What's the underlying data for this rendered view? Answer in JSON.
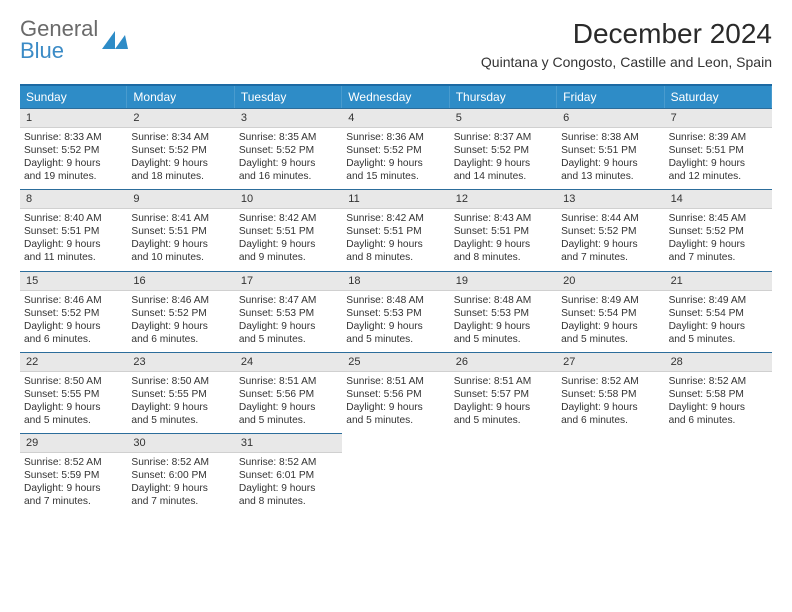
{
  "logo": {
    "textTop": "General",
    "textBottom": "Blue",
    "triColor": "#2e8cc7",
    "grayColor": "#6a6a6a",
    "blueColor": "#3b8bc6"
  },
  "header": {
    "title": "December 2024",
    "subtitle": "Quintana y Congosto, Castille and Leon, Spain"
  },
  "colors": {
    "headerBar": "#2e8cc7",
    "topRule": "#1c6aa3",
    "dayBarBg": "#e8e8e8",
    "dayBarTopBorder": "#2c6d9b"
  },
  "dow": [
    "Sunday",
    "Monday",
    "Tuesday",
    "Wednesday",
    "Thursday",
    "Friday",
    "Saturday"
  ],
  "weeks": [
    [
      {
        "n": "1",
        "sunrise": "Sunrise: 8:33 AM",
        "sunset": "Sunset: 5:52 PM",
        "day1": "Daylight: 9 hours",
        "day2": "and 19 minutes."
      },
      {
        "n": "2",
        "sunrise": "Sunrise: 8:34 AM",
        "sunset": "Sunset: 5:52 PM",
        "day1": "Daylight: 9 hours",
        "day2": "and 18 minutes."
      },
      {
        "n": "3",
        "sunrise": "Sunrise: 8:35 AM",
        "sunset": "Sunset: 5:52 PM",
        "day1": "Daylight: 9 hours",
        "day2": "and 16 minutes."
      },
      {
        "n": "4",
        "sunrise": "Sunrise: 8:36 AM",
        "sunset": "Sunset: 5:52 PM",
        "day1": "Daylight: 9 hours",
        "day2": "and 15 minutes."
      },
      {
        "n": "5",
        "sunrise": "Sunrise: 8:37 AM",
        "sunset": "Sunset: 5:52 PM",
        "day1": "Daylight: 9 hours",
        "day2": "and 14 minutes."
      },
      {
        "n": "6",
        "sunrise": "Sunrise: 8:38 AM",
        "sunset": "Sunset: 5:51 PM",
        "day1": "Daylight: 9 hours",
        "day2": "and 13 minutes."
      },
      {
        "n": "7",
        "sunrise": "Sunrise: 8:39 AM",
        "sunset": "Sunset: 5:51 PM",
        "day1": "Daylight: 9 hours",
        "day2": "and 12 minutes."
      }
    ],
    [
      {
        "n": "8",
        "sunrise": "Sunrise: 8:40 AM",
        "sunset": "Sunset: 5:51 PM",
        "day1": "Daylight: 9 hours",
        "day2": "and 11 minutes."
      },
      {
        "n": "9",
        "sunrise": "Sunrise: 8:41 AM",
        "sunset": "Sunset: 5:51 PM",
        "day1": "Daylight: 9 hours",
        "day2": "and 10 minutes."
      },
      {
        "n": "10",
        "sunrise": "Sunrise: 8:42 AM",
        "sunset": "Sunset: 5:51 PM",
        "day1": "Daylight: 9 hours",
        "day2": "and 9 minutes."
      },
      {
        "n": "11",
        "sunrise": "Sunrise: 8:42 AM",
        "sunset": "Sunset: 5:51 PM",
        "day1": "Daylight: 9 hours",
        "day2": "and 8 minutes."
      },
      {
        "n": "12",
        "sunrise": "Sunrise: 8:43 AM",
        "sunset": "Sunset: 5:51 PM",
        "day1": "Daylight: 9 hours",
        "day2": "and 8 minutes."
      },
      {
        "n": "13",
        "sunrise": "Sunrise: 8:44 AM",
        "sunset": "Sunset: 5:52 PM",
        "day1": "Daylight: 9 hours",
        "day2": "and 7 minutes."
      },
      {
        "n": "14",
        "sunrise": "Sunrise: 8:45 AM",
        "sunset": "Sunset: 5:52 PM",
        "day1": "Daylight: 9 hours",
        "day2": "and 7 minutes."
      }
    ],
    [
      {
        "n": "15",
        "sunrise": "Sunrise: 8:46 AM",
        "sunset": "Sunset: 5:52 PM",
        "day1": "Daylight: 9 hours",
        "day2": "and 6 minutes."
      },
      {
        "n": "16",
        "sunrise": "Sunrise: 8:46 AM",
        "sunset": "Sunset: 5:52 PM",
        "day1": "Daylight: 9 hours",
        "day2": "and 6 minutes."
      },
      {
        "n": "17",
        "sunrise": "Sunrise: 8:47 AM",
        "sunset": "Sunset: 5:53 PM",
        "day1": "Daylight: 9 hours",
        "day2": "and 5 minutes."
      },
      {
        "n": "18",
        "sunrise": "Sunrise: 8:48 AM",
        "sunset": "Sunset: 5:53 PM",
        "day1": "Daylight: 9 hours",
        "day2": "and 5 minutes."
      },
      {
        "n": "19",
        "sunrise": "Sunrise: 8:48 AM",
        "sunset": "Sunset: 5:53 PM",
        "day1": "Daylight: 9 hours",
        "day2": "and 5 minutes."
      },
      {
        "n": "20",
        "sunrise": "Sunrise: 8:49 AM",
        "sunset": "Sunset: 5:54 PM",
        "day1": "Daylight: 9 hours",
        "day2": "and 5 minutes."
      },
      {
        "n": "21",
        "sunrise": "Sunrise: 8:49 AM",
        "sunset": "Sunset: 5:54 PM",
        "day1": "Daylight: 9 hours",
        "day2": "and 5 minutes."
      }
    ],
    [
      {
        "n": "22",
        "sunrise": "Sunrise: 8:50 AM",
        "sunset": "Sunset: 5:55 PM",
        "day1": "Daylight: 9 hours",
        "day2": "and 5 minutes."
      },
      {
        "n": "23",
        "sunrise": "Sunrise: 8:50 AM",
        "sunset": "Sunset: 5:55 PM",
        "day1": "Daylight: 9 hours",
        "day2": "and 5 minutes."
      },
      {
        "n": "24",
        "sunrise": "Sunrise: 8:51 AM",
        "sunset": "Sunset: 5:56 PM",
        "day1": "Daylight: 9 hours",
        "day2": "and 5 minutes."
      },
      {
        "n": "25",
        "sunrise": "Sunrise: 8:51 AM",
        "sunset": "Sunset: 5:56 PM",
        "day1": "Daylight: 9 hours",
        "day2": "and 5 minutes."
      },
      {
        "n": "26",
        "sunrise": "Sunrise: 8:51 AM",
        "sunset": "Sunset: 5:57 PM",
        "day1": "Daylight: 9 hours",
        "day2": "and 5 minutes."
      },
      {
        "n": "27",
        "sunrise": "Sunrise: 8:52 AM",
        "sunset": "Sunset: 5:58 PM",
        "day1": "Daylight: 9 hours",
        "day2": "and 6 minutes."
      },
      {
        "n": "28",
        "sunrise": "Sunrise: 8:52 AM",
        "sunset": "Sunset: 5:58 PM",
        "day1": "Daylight: 9 hours",
        "day2": "and 6 minutes."
      }
    ],
    [
      {
        "n": "29",
        "sunrise": "Sunrise: 8:52 AM",
        "sunset": "Sunset: 5:59 PM",
        "day1": "Daylight: 9 hours",
        "day2": "and 7 minutes."
      },
      {
        "n": "30",
        "sunrise": "Sunrise: 8:52 AM",
        "sunset": "Sunset: 6:00 PM",
        "day1": "Daylight: 9 hours",
        "day2": "and 7 minutes."
      },
      {
        "n": "31",
        "sunrise": "Sunrise: 8:52 AM",
        "sunset": "Sunset: 6:01 PM",
        "day1": "Daylight: 9 hours",
        "day2": "and 8 minutes."
      },
      null,
      null,
      null,
      null
    ]
  ]
}
